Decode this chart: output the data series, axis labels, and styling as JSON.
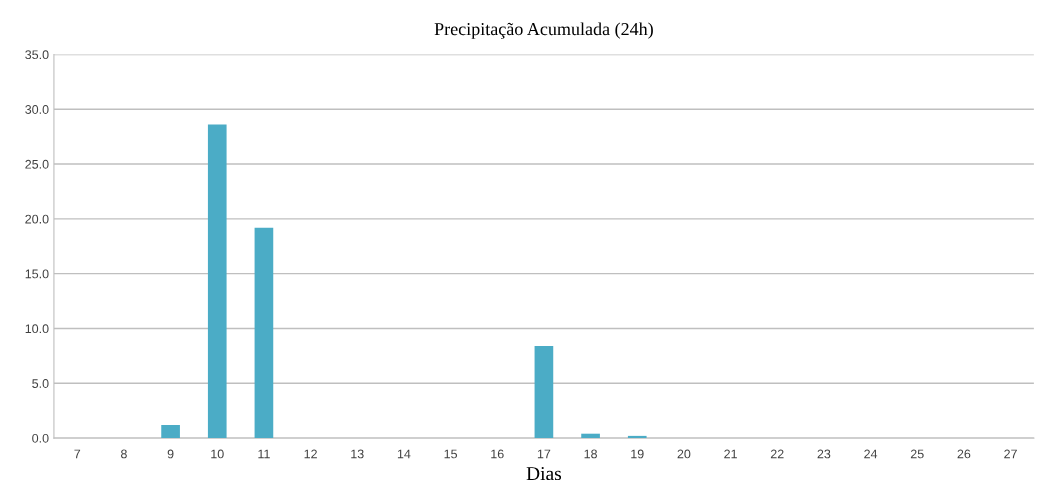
{
  "chart_data": {
    "type": "bar",
    "title": "Precipitação Acumulada (24h)",
    "xlabel": "Dias",
    "categories": [
      "7",
      "8",
      "9",
      "10",
      "11",
      "12",
      "13",
      "14",
      "15",
      "16",
      "17",
      "18",
      "19",
      "20",
      "21",
      "22",
      "23",
      "24",
      "25",
      "26",
      "27"
    ],
    "values": [
      0,
      0,
      1.2,
      28.6,
      19.2,
      0,
      0,
      0,
      0,
      0,
      8.4,
      0.4,
      0.2,
      0,
      0,
      0,
      0,
      0,
      0,
      0,
      0
    ],
    "color": "#4bacc6",
    "ylim": [
      0,
      35
    ],
    "yticks": [
      {
        "value": 0,
        "label": "0.0"
      },
      {
        "value": 5,
        "label": "5.0"
      },
      {
        "value": 10,
        "label": "10.0"
      },
      {
        "value": 15,
        "label": "15.0"
      },
      {
        "value": 20,
        "label": "20.0"
      },
      {
        "value": 25,
        "label": "25.0"
      },
      {
        "value": 30,
        "label": "30.0"
      },
      {
        "value": 35,
        "label": "35.0"
      }
    ],
    "grid": "y"
  }
}
